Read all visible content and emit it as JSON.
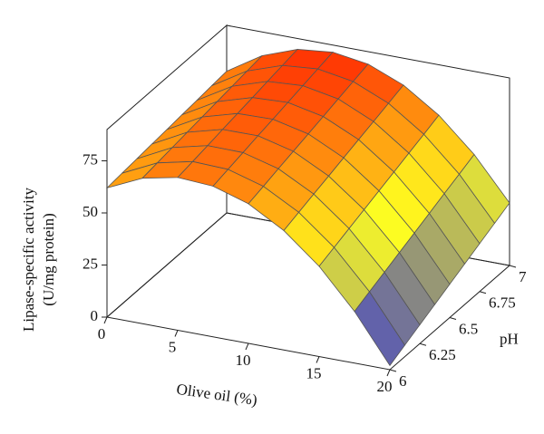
{
  "chart_data": {
    "type": "surface",
    "xlabel": "Olive oil (%)",
    "ylabel": "pH",
    "zlabel": [
      "Lipase-specific activity",
      "(U/mg protein)"
    ],
    "x": [
      0,
      2.5,
      5,
      7.5,
      10,
      12.5,
      15,
      17.5,
      20
    ],
    "y": [
      6,
      6.125,
      6.25,
      6.375,
      6.5,
      6.625,
      6.75,
      6.875,
      7
    ],
    "z": [
      [
        62,
        69.8,
        73.3,
        72.3,
        67,
        57.3,
        43.3,
        24.8,
        2
      ],
      [
        62.8,
        70.9,
        74.7,
        74.1,
        69.1,
        59.8,
        46.1,
        28.0,
        5.5
      ],
      [
        63.5,
        72.0,
        76.1,
        75.9,
        71.3,
        62.3,
        48.9,
        31.1,
        9.0
      ],
      [
        64.3,
        73.1,
        77.6,
        77.7,
        73.4,
        64.7,
        51.7,
        34.3,
        12.5
      ],
      [
        65,
        74.2,
        79,
        79.4,
        75.5,
        67.2,
        54.5,
        37.4,
        16
      ],
      [
        65.8,
        75.3,
        80.4,
        81.2,
        77.6,
        69.7,
        57.3,
        40.6,
        19.5
      ],
      [
        66.5,
        76.4,
        81.9,
        83.0,
        79.8,
        72.1,
        60.1,
        43.8,
        23
      ],
      [
        67.3,
        77.5,
        83.3,
        84.8,
        81.9,
        74.6,
        62.9,
        46.9,
        26.5
      ],
      [
        68,
        78.6,
        84.8,
        86.6,
        84,
        77.1,
        65.8,
        50.1,
        30
      ]
    ],
    "xlim": [
      0,
      20
    ],
    "xticks": [
      0,
      5,
      10,
      15,
      20
    ],
    "ylim": [
      6,
      7
    ],
    "yticks": [
      6,
      6.25,
      6.5,
      6.75,
      7
    ],
    "zlim": [
      0,
      90
    ],
    "zticks": [
      0,
      25,
      50,
      75
    ],
    "colormap": [
      "#1010ff",
      "#8a8a80",
      "#ffff20",
      "#ff9a10",
      "#ff1a00"
    ],
    "edge_color": "#555555"
  }
}
